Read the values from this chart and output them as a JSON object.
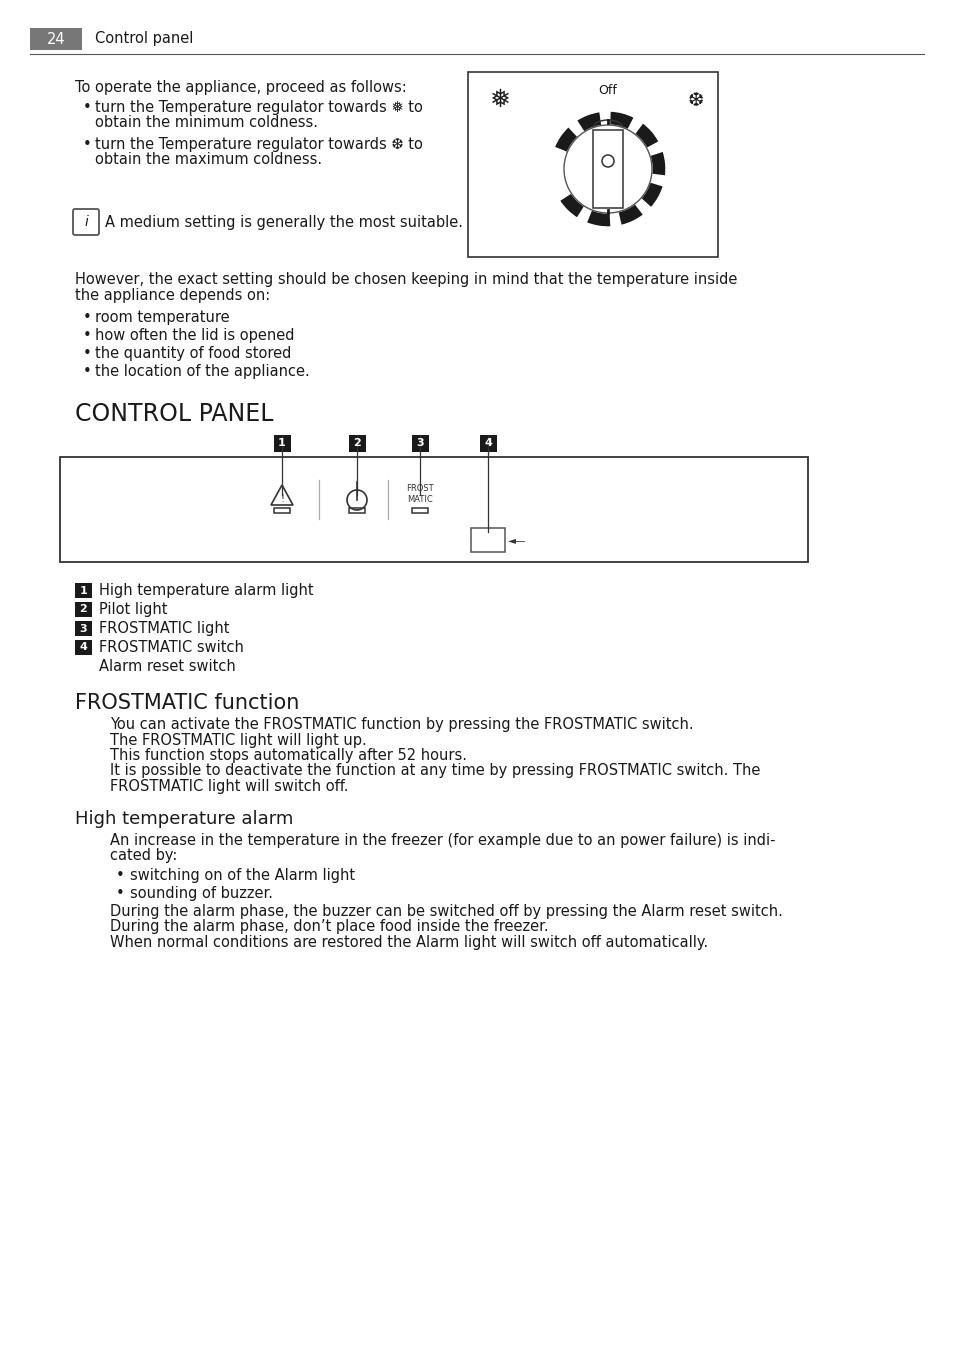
{
  "page_number": "24",
  "page_title": "Control panel",
  "bg_color": "#ffffff",
  "text_color": "#1a1a1a",
  "header_bg": "#777777",
  "header_text_color": "#ffffff",
  "section1_intro": "To operate the appliance, proceed as follows:",
  "bullet1a": "turn the Temperature regulator towards ❅ to",
  "bullet1a_2": "obtain the minimum coldness.",
  "bullet1b": "turn the Temperature regulator towards ❆ to",
  "bullet1b_2": "obtain the maximum coldness.",
  "info_note": "A medium setting is generally the most suitable.",
  "section1_para1": "However, the exact setting should be chosen keeping in mind that the temperature inside",
  "section1_para2": "the appliance depends on:",
  "section1_list": [
    "room temperature",
    "how often the lid is opened",
    "the quantity of food stored",
    "the location of the appliance."
  ],
  "section2_title": "CONTROL PANEL",
  "legend_items": [
    {
      "num": "1",
      "text": "High temperature alarm light"
    },
    {
      "num": "2",
      "text": "Pilot light"
    },
    {
      "num": "3",
      "text": "FROSTMATIC light"
    },
    {
      "num": "4",
      "text": "FROSTMATIC switch"
    }
  ],
  "legend_extra": "Alarm reset switch",
  "section3_title": "FROSTMATIC function",
  "section3_lines": [
    "You can activate the FROSTMATIC function by pressing the FROSTMATIC switch.",
    "The FROSTMATIC light will light up.",
    "This function stops automatically after 52 hours.",
    "It is possible to deactivate the function at any time by pressing FROSTMATIC switch. The",
    "FROSTMATIC light will switch off."
  ],
  "section4_title": "High temperature alarm",
  "section4_intro1": "An increase in the temperature in the freezer (for example due to an power failure) is indi-",
  "section4_intro2": "cated by:",
  "section4_bullets": [
    "switching on of the Alarm light",
    "sounding of buzzer."
  ],
  "section4_body_lines": [
    "During the alarm phase, the buzzer can be switched off by pressing the Alarm reset switch.",
    "During the alarm phase, don’t place food inside the freezer.",
    "When normal conditions are restored the Alarm light will switch off automatically."
  ],
  "font_family": "DejaVu Sans",
  "body_fontsize": 10.5,
  "title_fontsize": 17,
  "section3_fontsize": 15,
  "section4_fontsize": 13,
  "label_fontsize": 9
}
